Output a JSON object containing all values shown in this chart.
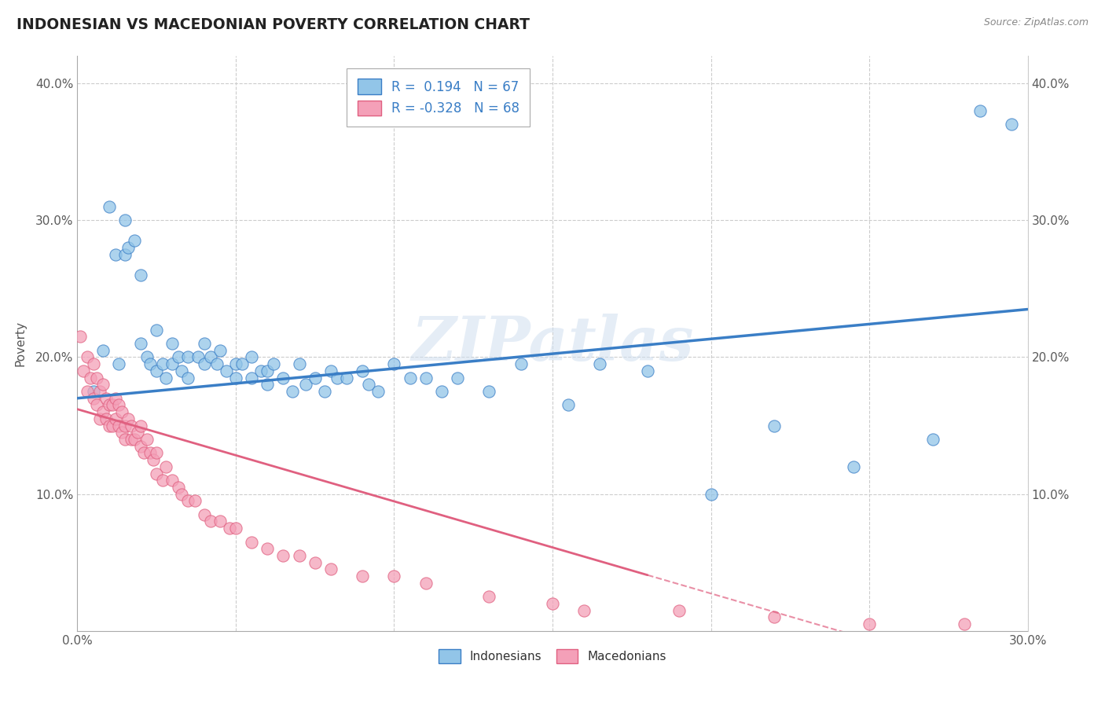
{
  "title": "INDONESIAN VS MACEDONIAN POVERTY CORRELATION CHART",
  "source_text": "Source: ZipAtlas.com",
  "ylabel": "Poverty",
  "xlim": [
    0,
    0.3
  ],
  "ylim": [
    0,
    0.42
  ],
  "r_indonesian": 0.194,
  "n_indonesian": 67,
  "r_macedonian": -0.328,
  "n_macedonian": 68,
  "blue_color": "#92C5E8",
  "pink_color": "#F4A0B8",
  "blue_line_color": "#3A7EC6",
  "pink_line_color": "#E06080",
  "watermark": "ZIPatlas",
  "indonesian_x": [
    0.005,
    0.008,
    0.01,
    0.012,
    0.013,
    0.015,
    0.015,
    0.016,
    0.018,
    0.02,
    0.02,
    0.022,
    0.023,
    0.025,
    0.025,
    0.027,
    0.028,
    0.03,
    0.03,
    0.032,
    0.033,
    0.035,
    0.035,
    0.038,
    0.04,
    0.04,
    0.042,
    0.044,
    0.045,
    0.047,
    0.05,
    0.05,
    0.052,
    0.055,
    0.055,
    0.058,
    0.06,
    0.06,
    0.062,
    0.065,
    0.068,
    0.07,
    0.072,
    0.075,
    0.078,
    0.08,
    0.082,
    0.085,
    0.09,
    0.092,
    0.095,
    0.1,
    0.105,
    0.11,
    0.115,
    0.12,
    0.13,
    0.14,
    0.155,
    0.165,
    0.18,
    0.2,
    0.22,
    0.245,
    0.27,
    0.285,
    0.295
  ],
  "indonesian_y": [
    0.175,
    0.205,
    0.31,
    0.275,
    0.195,
    0.275,
    0.3,
    0.28,
    0.285,
    0.26,
    0.21,
    0.2,
    0.195,
    0.22,
    0.19,
    0.195,
    0.185,
    0.21,
    0.195,
    0.2,
    0.19,
    0.2,
    0.185,
    0.2,
    0.21,
    0.195,
    0.2,
    0.195,
    0.205,
    0.19,
    0.195,
    0.185,
    0.195,
    0.2,
    0.185,
    0.19,
    0.19,
    0.18,
    0.195,
    0.185,
    0.175,
    0.195,
    0.18,
    0.185,
    0.175,
    0.19,
    0.185,
    0.185,
    0.19,
    0.18,
    0.175,
    0.195,
    0.185,
    0.185,
    0.175,
    0.185,
    0.175,
    0.195,
    0.165,
    0.195,
    0.19,
    0.1,
    0.15,
    0.12,
    0.14,
    0.38,
    0.37
  ],
  "macedonian_x": [
    0.001,
    0.002,
    0.003,
    0.003,
    0.004,
    0.005,
    0.005,
    0.006,
    0.006,
    0.007,
    0.007,
    0.008,
    0.008,
    0.009,
    0.009,
    0.01,
    0.01,
    0.011,
    0.011,
    0.012,
    0.012,
    0.013,
    0.013,
    0.014,
    0.014,
    0.015,
    0.015,
    0.016,
    0.017,
    0.017,
    0.018,
    0.019,
    0.02,
    0.02,
    0.021,
    0.022,
    0.023,
    0.024,
    0.025,
    0.025,
    0.027,
    0.028,
    0.03,
    0.032,
    0.033,
    0.035,
    0.037,
    0.04,
    0.042,
    0.045,
    0.048,
    0.05,
    0.055,
    0.06,
    0.065,
    0.07,
    0.075,
    0.08,
    0.09,
    0.1,
    0.11,
    0.13,
    0.15,
    0.16,
    0.19,
    0.22,
    0.25,
    0.28
  ],
  "macedonian_y": [
    0.215,
    0.19,
    0.2,
    0.175,
    0.185,
    0.17,
    0.195,
    0.165,
    0.185,
    0.175,
    0.155,
    0.18,
    0.16,
    0.17,
    0.155,
    0.165,
    0.15,
    0.165,
    0.15,
    0.17,
    0.155,
    0.165,
    0.15,
    0.16,
    0.145,
    0.15,
    0.14,
    0.155,
    0.14,
    0.15,
    0.14,
    0.145,
    0.135,
    0.15,
    0.13,
    0.14,
    0.13,
    0.125,
    0.115,
    0.13,
    0.11,
    0.12,
    0.11,
    0.105,
    0.1,
    0.095,
    0.095,
    0.085,
    0.08,
    0.08,
    0.075,
    0.075,
    0.065,
    0.06,
    0.055,
    0.055,
    0.05,
    0.045,
    0.04,
    0.04,
    0.035,
    0.025,
    0.02,
    0.015,
    0.015,
    0.01,
    0.005,
    0.005
  ]
}
